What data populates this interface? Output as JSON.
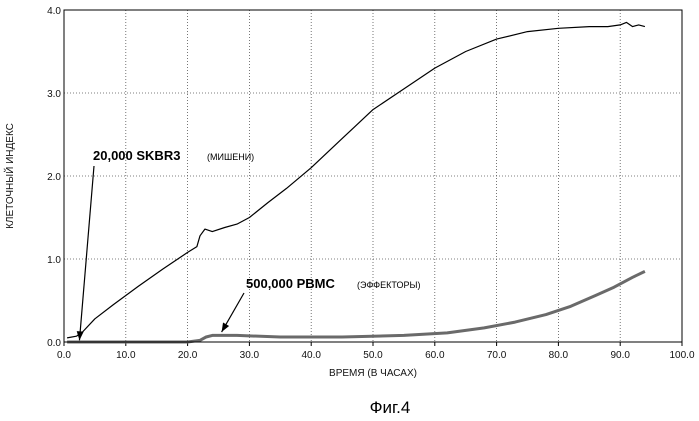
{
  "chart_data": {
    "type": "line",
    "xlabel": "ВРЕМЯ (В ЧАСАХ)",
    "ylabel": "КЛЕТОЧНЫЙ ИНДЕКС",
    "caption": "Фиг.4",
    "xlim": [
      0,
      100
    ],
    "ylim": [
      0,
      4
    ],
    "x_ticks": [
      "0.0",
      "10.0",
      "20.0",
      "30.0",
      "40.0",
      "50.0",
      "60.0",
      "70.0",
      "80.0",
      "90.0",
      "100.0"
    ],
    "y_ticks": [
      "0.0",
      "1.0",
      "2.0",
      "3.0",
      "4.0"
    ],
    "grid": true,
    "annotations": [
      {
        "bold": "20,000 SKBR3",
        "small": "(МИШЕНИ)",
        "points_to": [
          2.5,
          0.02
        ]
      },
      {
        "bold": "500,000 PBMC",
        "small": "(ЭФФЕКТОРЫ)",
        "points_to": [
          25.5,
          0.12
        ]
      }
    ],
    "series": [
      {
        "color": "#000000",
        "x": [
          0.5,
          2.0,
          3.0,
          5.0,
          8.0,
          12.0,
          16.0,
          20.0,
          21.5,
          22.0,
          22.8,
          24.0,
          26.0,
          28.0,
          30.0,
          33.0,
          36.0,
          40.0,
          45.0,
          50.0,
          55.0,
          60.0,
          65.0,
          70.0,
          75.0,
          80.0,
          85.0,
          88.0,
          90.0,
          91.0,
          92.0,
          93.0,
          94.0
        ],
        "y": [
          0.05,
          0.07,
          0.12,
          0.28,
          0.45,
          0.67,
          0.88,
          1.08,
          1.15,
          1.28,
          1.36,
          1.33,
          1.38,
          1.42,
          1.5,
          1.68,
          1.85,
          2.1,
          2.45,
          2.8,
          3.05,
          3.3,
          3.5,
          3.65,
          3.74,
          3.78,
          3.8,
          3.8,
          3.82,
          3.85,
          3.8,
          3.82,
          3.8
        ]
      },
      {
        "color": "#6a6a6a",
        "x": [
          0.5,
          5,
          10,
          15,
          20,
          22,
          23,
          24,
          28,
          35,
          45,
          55,
          62,
          68,
          73,
          78,
          82,
          86,
          89,
          92,
          94
        ],
        "y": [
          0.0,
          0.0,
          0.0,
          0.0,
          0.0,
          0.02,
          0.06,
          0.08,
          0.08,
          0.06,
          0.06,
          0.08,
          0.11,
          0.17,
          0.24,
          0.33,
          0.43,
          0.56,
          0.66,
          0.78,
          0.85
        ]
      }
    ]
  }
}
